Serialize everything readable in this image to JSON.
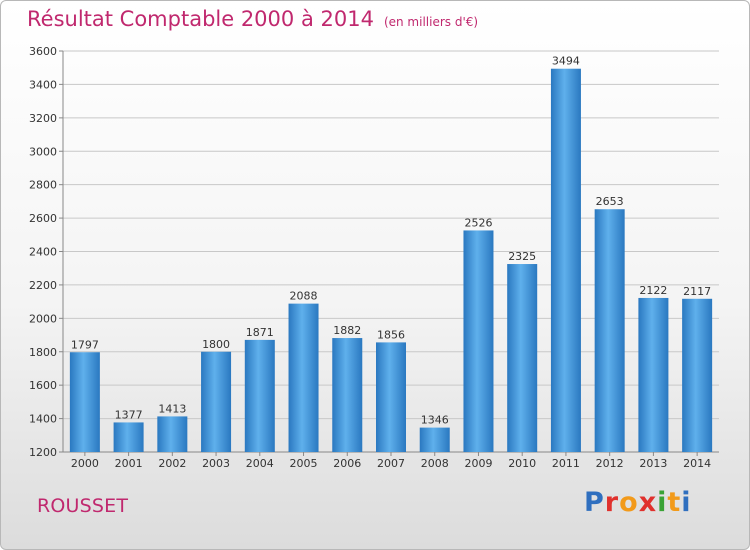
{
  "page": {
    "title": "Résultat Comptable 2000 à 2014",
    "subtitle": "(en milliers d'€)",
    "place": "ROUSSET",
    "logo_text": "Proxiti"
  },
  "chart_data": {
    "type": "bar",
    "categories": [
      "2000",
      "2001",
      "2002",
      "2003",
      "2004",
      "2005",
      "2006",
      "2007",
      "2008",
      "2009",
      "2010",
      "2011",
      "2012",
      "2013",
      "2014"
    ],
    "values": [
      1797,
      1377,
      1413,
      1800,
      1871,
      2088,
      1882,
      1856,
      1346,
      2526,
      2325,
      3494,
      2653,
      2122,
      2117
    ],
    "ylim": [
      1200,
      3600
    ],
    "yticks": [
      1200,
      1400,
      1600,
      1800,
      2000,
      2200,
      2400,
      2600,
      2800,
      3000,
      3200,
      3400,
      3600
    ],
    "grid": true,
    "bar_color": "#3d93d8",
    "grid_color": "#c8c8c8"
  }
}
